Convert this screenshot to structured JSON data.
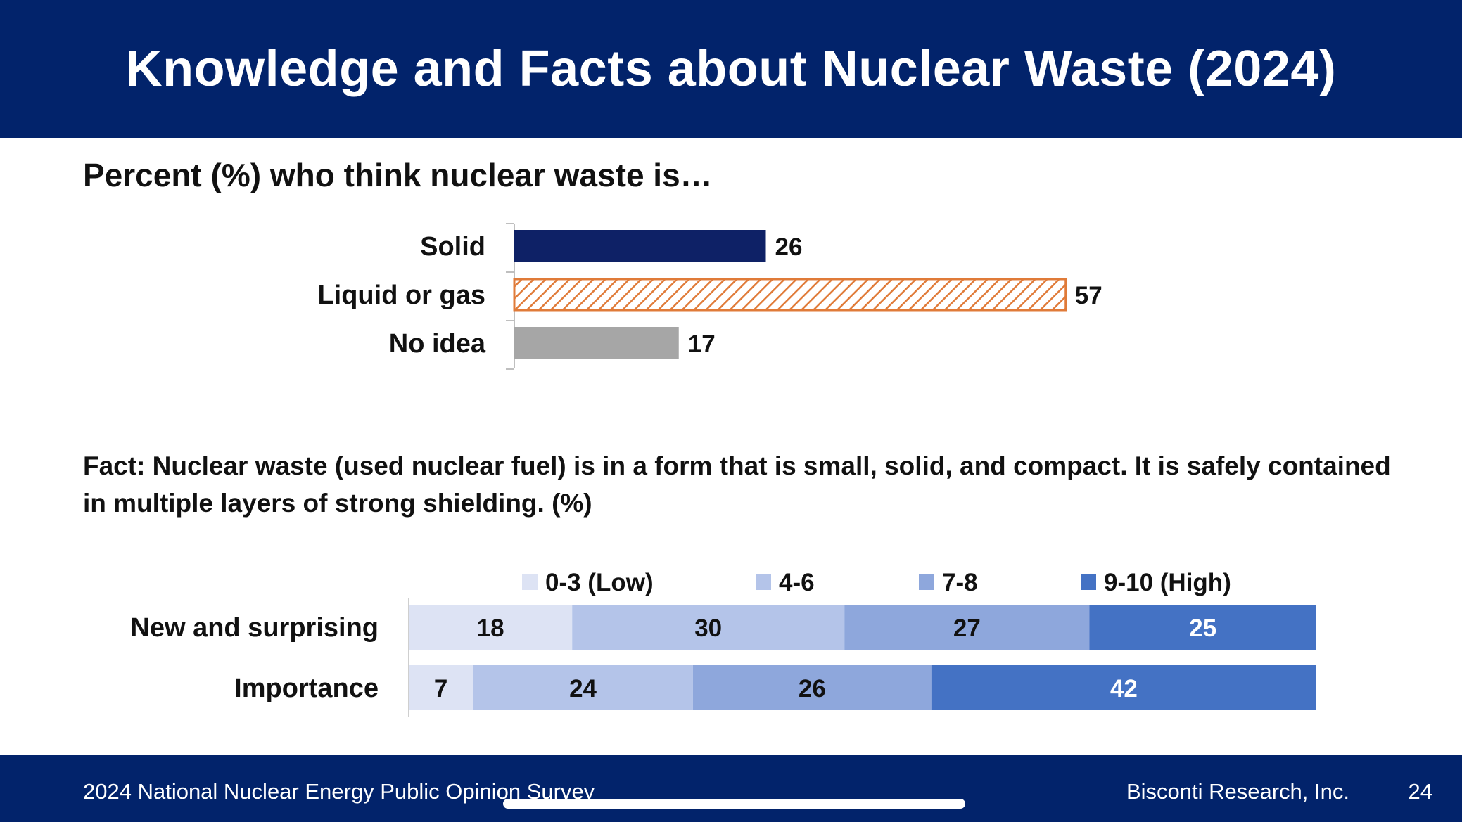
{
  "header": {
    "title": "Knowledge and Facts about Nuclear Waste (2024)"
  },
  "section1": {
    "title": "Percent (%) who think nuclear waste is…"
  },
  "section2": {
    "title": "Fact: Nuclear waste (used nuclear fuel) is in a form that is small, solid, and compact. It is safely contained in multiple layers of strong shielding. (%)"
  },
  "footer": {
    "source": "2024 National Nuclear Energy Public Opinion Survey",
    "org": "Bisconti Research, Inc.",
    "page": "24"
  },
  "colors": {
    "header_bg": "#02236b",
    "solid": "#0e2166",
    "liquid_stroke": "#e07b39",
    "no_idea": "#a6a6a6",
    "seg_low": "#dde3f4",
    "seg_4_6": "#b4c4e9",
    "seg_7_8": "#8ea7dc",
    "seg_high": "#4472c4"
  },
  "chart_data": [
    {
      "type": "bar",
      "orientation": "horizontal",
      "title": "Percent (%) who think nuclear waste is…",
      "categories": [
        "Solid",
        "Liquid or gas",
        "No idea"
      ],
      "values": [
        26,
        57,
        17
      ],
      "data_labels": [
        "26",
        "57",
        "17"
      ],
      "xlim": [
        0,
        60
      ],
      "grid": false,
      "bar_styles": [
        "solid-navy",
        "orange-hatched",
        "solid-gray"
      ]
    },
    {
      "type": "bar",
      "orientation": "horizontal",
      "stacked": true,
      "title": "Fact: Nuclear waste (used nuclear fuel) is in a form that is small, solid, and compact. It is safely contained in multiple layers of strong shielding. (%)",
      "categories": [
        "New and surprising",
        "Importance"
      ],
      "series": [
        {
          "name": "0-3 (Low)",
          "values": [
            18,
            7
          ],
          "color": "#dde3f4"
        },
        {
          "name": "4-6",
          "values": [
            30,
            24
          ],
          "color": "#b4c4e9"
        },
        {
          "name": "7-8",
          "values": [
            27,
            26
          ],
          "color": "#8ea7dc"
        },
        {
          "name": "9-10 (High)",
          "values": [
            25,
            42
          ],
          "color": "#4472c4"
        }
      ],
      "legend_position": "top",
      "xlim": [
        0,
        100
      ],
      "grid": false
    }
  ]
}
